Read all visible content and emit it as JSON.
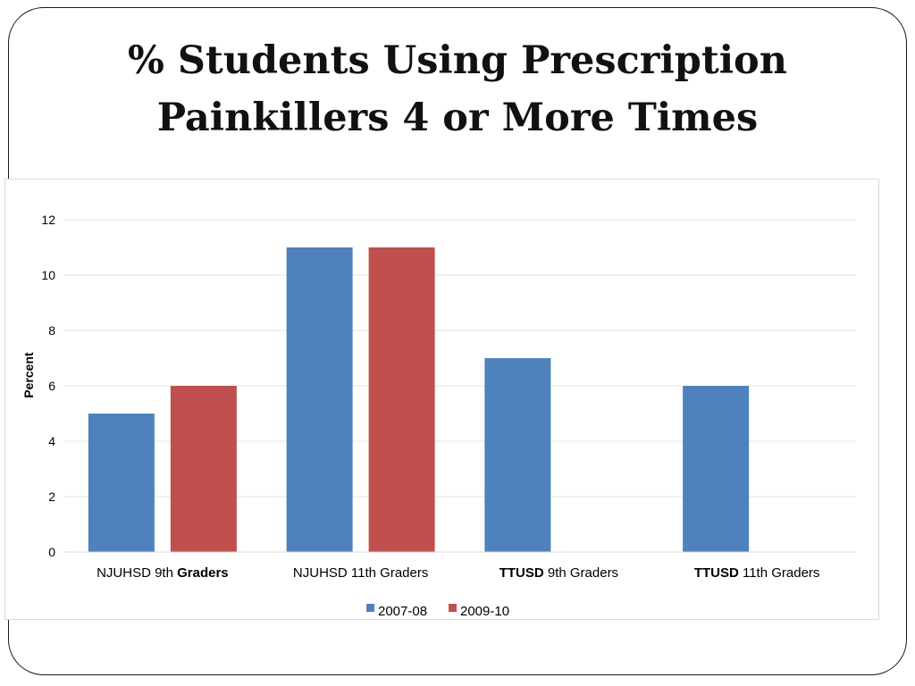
{
  "slide": {
    "title_line1": "% Students Using Prescription",
    "title_line2": "Painkillers 4 or More Times"
  },
  "chart_data": {
    "type": "bar",
    "ylabel": "Percent",
    "xlabel": "",
    "ylim": [
      0,
      12
    ],
    "yticks": [
      0,
      2,
      4,
      6,
      8,
      10,
      12
    ],
    "grid": true,
    "legend_position": "bottom",
    "categories": [
      {
        "parts": [
          {
            "text": "NJUHSD 9th ",
            "bold": false
          },
          {
            "text": "Graders",
            "bold": true
          }
        ]
      },
      {
        "parts": [
          {
            "text": "NJUHSD 11th Graders",
            "bold": false
          }
        ]
      },
      {
        "parts": [
          {
            "text": "TTUSD",
            "bold": true
          },
          {
            "text": " 9th Graders",
            "bold": false
          }
        ]
      },
      {
        "parts": [
          {
            "text": "TTUSD",
            "bold": true
          },
          {
            "text": " 11th Graders",
            "bold": false
          }
        ]
      }
    ],
    "series": [
      {
        "name": "2007-08",
        "color": "#4f81bd",
        "values": [
          5,
          11,
          7,
          6
        ]
      },
      {
        "name": "2009-10",
        "color": "#c0504d",
        "values": [
          6,
          11,
          null,
          null
        ]
      }
    ]
  }
}
